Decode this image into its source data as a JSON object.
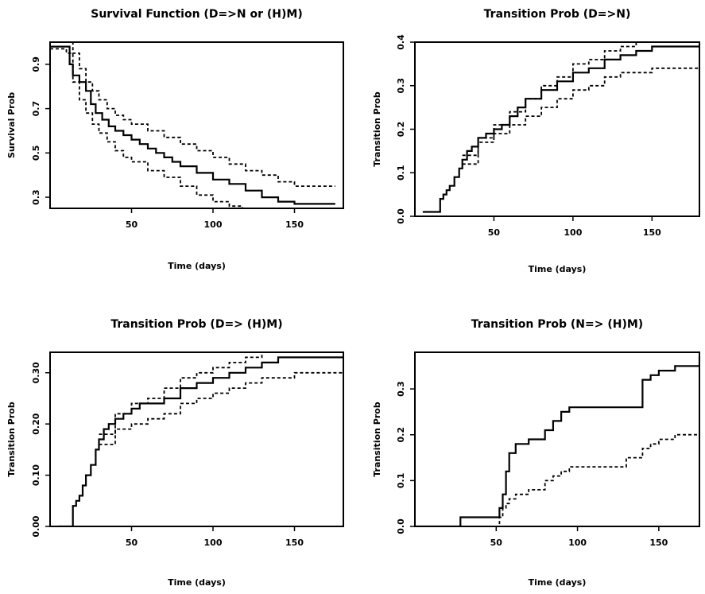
{
  "chart_data": [
    {
      "type": "line",
      "title": "Survival Function (D=>N or (H)M)",
      "xlabel": "Time (days)",
      "ylabel": "Survival Prob",
      "xlim": [
        0,
        180
      ],
      "ylim": [
        0.25,
        1.0
      ],
      "xticks": [
        50,
        100,
        150
      ],
      "yticks": [
        0.3,
        0.5,
        0.7,
        0.9
      ],
      "xtick_labels": [
        "50",
        "100",
        "150"
      ],
      "ytick_labels": [
        "0.3",
        "0.5",
        "0.7",
        "0.9"
      ],
      "series": [
        {
          "style": "solid",
          "x": [
            0,
            5,
            12,
            14,
            18,
            22,
            25,
            28,
            32,
            36,
            40,
            45,
            50,
            55,
            60,
            65,
            70,
            75,
            80,
            90,
            100,
            110,
            120,
            130,
            140,
            150,
            160,
            175
          ],
          "y": [
            0.98,
            0.98,
            0.9,
            0.85,
            0.82,
            0.78,
            0.72,
            0.68,
            0.65,
            0.62,
            0.6,
            0.58,
            0.56,
            0.54,
            0.52,
            0.5,
            0.48,
            0.46,
            0.44,
            0.41,
            0.38,
            0.36,
            0.33,
            0.3,
            0.28,
            0.27,
            0.27,
            0.27
          ]
        },
        {
          "style": "dashed",
          "x": [
            0,
            10,
            14,
            18,
            22,
            26,
            30,
            35,
            40,
            45,
            50,
            60,
            70,
            80,
            90,
            100,
            110,
            120,
            130,
            140,
            150,
            160,
            175
          ],
          "y": [
            1.0,
            1.0,
            0.95,
            0.88,
            0.82,
            0.78,
            0.74,
            0.7,
            0.67,
            0.65,
            0.63,
            0.6,
            0.57,
            0.54,
            0.51,
            0.48,
            0.45,
            0.42,
            0.4,
            0.37,
            0.35,
            0.35,
            0.35
          ]
        },
        {
          "style": "dashed",
          "x": [
            0,
            10,
            14,
            18,
            22,
            26,
            30,
            35,
            40,
            45,
            50,
            60,
            70,
            80,
            90,
            100,
            110,
            118
          ],
          "y": [
            0.97,
            0.95,
            0.82,
            0.74,
            0.68,
            0.63,
            0.59,
            0.55,
            0.51,
            0.48,
            0.46,
            0.42,
            0.39,
            0.35,
            0.31,
            0.28,
            0.26,
            0.25
          ]
        }
      ]
    },
    {
      "type": "line",
      "title": "Transition Prob (D=>N)",
      "xlabel": "Time (days)",
      "ylabel": "Transition Prob",
      "xlim": [
        0,
        180
      ],
      "ylim": [
        0,
        0.4
      ],
      "xticks": [
        50,
        100,
        150
      ],
      "yticks": [
        0.0,
        0.1,
        0.2,
        0.3,
        0.4
      ],
      "xtick_labels": [
        "50",
        "100",
        "150"
      ],
      "ytick_labels": [
        "0.0",
        "0.1",
        "0.2",
        "0.3",
        "0.4"
      ],
      "series": [
        {
          "style": "solid",
          "x": [
            5,
            14,
            16,
            18,
            20,
            22,
            25,
            28,
            30,
            33,
            36,
            40,
            45,
            50,
            55,
            60,
            65,
            70,
            80,
            90,
            100,
            110,
            120,
            130,
            140,
            150,
            160,
            180
          ],
          "y": [
            0.01,
            0.01,
            0.04,
            0.05,
            0.06,
            0.07,
            0.09,
            0.11,
            0.13,
            0.15,
            0.16,
            0.18,
            0.19,
            0.2,
            0.21,
            0.23,
            0.25,
            0.27,
            0.29,
            0.31,
            0.33,
            0.34,
            0.36,
            0.37,
            0.38,
            0.39,
            0.39,
            0.39
          ]
        },
        {
          "style": "dashed",
          "x": [
            30,
            40,
            50,
            60,
            70,
            80,
            90,
            100,
            110,
            120,
            130,
            140,
            150,
            180
          ],
          "y": [
            0.14,
            0.18,
            0.21,
            0.24,
            0.27,
            0.3,
            0.32,
            0.35,
            0.36,
            0.38,
            0.39,
            0.4,
            0.4,
            0.4
          ]
        },
        {
          "style": "dashed",
          "x": [
            30,
            40,
            50,
            60,
            70,
            80,
            90,
            100,
            110,
            120,
            130,
            140,
            150,
            180
          ],
          "y": [
            0.12,
            0.17,
            0.19,
            0.21,
            0.23,
            0.25,
            0.27,
            0.29,
            0.3,
            0.32,
            0.33,
            0.33,
            0.34,
            0.34
          ]
        }
      ]
    },
    {
      "type": "line",
      "title": "Transition Prob (D=> (H)M)",
      "xlabel": "Time (days)",
      "ylabel": "Transition Prob",
      "xlim": [
        0,
        180
      ],
      "ylim": [
        0,
        0.34
      ],
      "xticks": [
        50,
        100,
        150
      ],
      "yticks": [
        0.0,
        0.1,
        0.2,
        0.3
      ],
      "xtick_labels": [
        "50",
        "100",
        "150"
      ],
      "ytick_labels": [
        "0.00",
        "0.10",
        "0.20",
        "0.30"
      ],
      "series": [
        {
          "style": "solid",
          "x": [
            5,
            12,
            14,
            16,
            18,
            20,
            22,
            25,
            28,
            30,
            33,
            36,
            40,
            45,
            50,
            55,
            60,
            70,
            80,
            90,
            100,
            110,
            120,
            130,
            140,
            150,
            180
          ],
          "y": [
            0.0,
            0.0,
            0.04,
            0.05,
            0.06,
            0.08,
            0.1,
            0.12,
            0.15,
            0.17,
            0.19,
            0.2,
            0.21,
            0.22,
            0.23,
            0.24,
            0.24,
            0.25,
            0.27,
            0.28,
            0.29,
            0.3,
            0.31,
            0.32,
            0.33,
            0.33,
            0.33
          ]
        },
        {
          "style": "dashed",
          "x": [
            30,
            40,
            50,
            60,
            70,
            80,
            90,
            100,
            110,
            120,
            130,
            140,
            150,
            180
          ],
          "y": [
            0.18,
            0.22,
            0.24,
            0.25,
            0.27,
            0.29,
            0.3,
            0.31,
            0.32,
            0.33,
            0.34,
            0.34,
            0.34,
            0.34
          ]
        },
        {
          "style": "dashed",
          "x": [
            30,
            40,
            50,
            60,
            70,
            80,
            90,
            100,
            110,
            120,
            130,
            140,
            150,
            180
          ],
          "y": [
            0.16,
            0.19,
            0.2,
            0.21,
            0.22,
            0.24,
            0.25,
            0.26,
            0.27,
            0.28,
            0.29,
            0.29,
            0.3,
            0.3
          ]
        }
      ]
    },
    {
      "type": "line",
      "title": "Transition Prob (N=> (H)M)",
      "xlabel": "Time (days)",
      "ylabel": "Transition Prob",
      "xlim": [
        0,
        175
      ],
      "ylim": [
        0,
        0.38
      ],
      "xticks": [
        50,
        100,
        150
      ],
      "yticks": [
        0.0,
        0.1,
        0.2,
        0.3
      ],
      "xtick_labels": [
        "50",
        "100",
        "150"
      ],
      "ytick_labels": [
        "0.0",
        "0.1",
        "0.2",
        "0.3"
      ],
      "series": [
        {
          "style": "solid",
          "x": [
            0,
            10,
            28,
            30,
            50,
            52,
            54,
            56,
            58,
            62,
            70,
            80,
            85,
            90,
            95,
            130,
            140,
            145,
            150,
            160,
            175
          ],
          "y": [
            0.0,
            0.0,
            0.02,
            0.02,
            0.02,
            0.04,
            0.07,
            0.12,
            0.16,
            0.18,
            0.19,
            0.21,
            0.23,
            0.25,
            0.26,
            0.26,
            0.32,
            0.33,
            0.34,
            0.35,
            0.37
          ]
        },
        {
          "style": "dashed",
          "x": [
            50,
            52,
            54,
            56,
            58,
            62,
            70,
            80,
            85,
            90,
            95,
            130,
            140,
            145,
            150,
            160,
            175
          ],
          "y": [
            0.0,
            0.02,
            0.04,
            0.05,
            0.06,
            0.07,
            0.08,
            0.1,
            0.11,
            0.12,
            0.13,
            0.15,
            0.17,
            0.18,
            0.19,
            0.2,
            0.22
          ]
        }
      ]
    }
  ]
}
